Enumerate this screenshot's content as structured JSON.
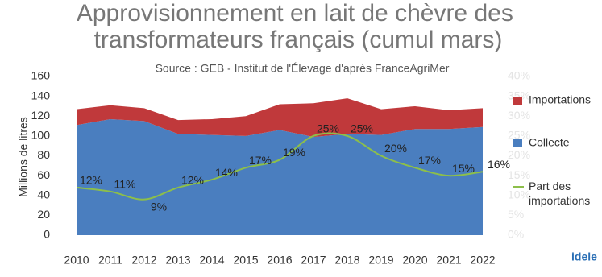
{
  "chart_data": {
    "type": "stacked-area-line",
    "title": "Approvisionnement en lait de chèvre des transformateurs français (cumul mars)",
    "subtitle": "Source : GEB - Institut de l'Élevage d'après FranceAgriMer",
    "y_label": "Millions de litres",
    "categories": [
      "2010",
      "2011",
      "2012",
      "2013",
      "2014",
      "2015",
      "2016",
      "2017",
      "2018",
      "2019",
      "2020",
      "2021",
      "2022"
    ],
    "series": [
      {
        "name": "Collecte",
        "color": "#4a7ebf",
        "values": [
          111,
          117,
          115,
          102,
          101,
          100,
          106,
          99,
          102,
          101,
          107,
          107,
          109
        ]
      },
      {
        "name": "Importations",
        "color": "#c0393b",
        "values": [
          16,
          14,
          13,
          14,
          16,
          20,
          26,
          34,
          36,
          26,
          23,
          19,
          19
        ]
      },
      {
        "name": "Part des importations",
        "color": "#8dbf4a",
        "axis": "y2",
        "values": [
          12,
          11,
          9,
          12,
          14,
          17,
          19,
          25,
          25,
          20,
          17,
          15,
          16
        ],
        "value_labels": [
          "12%",
          "11%",
          "9%",
          "12%",
          "14%",
          "17%",
          "19%",
          "25%",
          "25%",
          "20%",
          "17%",
          "15%",
          "16%"
        ]
      }
    ],
    "ylim": [
      0,
      160
    ],
    "yticks": [
      0,
      20,
      40,
      60,
      80,
      100,
      120,
      140,
      160
    ],
    "y2lim": [
      0,
      40
    ],
    "y2ticks": [
      {
        "value": 0,
        "label": "0%"
      },
      {
        "value": 5,
        "label": "5%"
      },
      {
        "value": 10,
        "label": "10%"
      },
      {
        "value": 15,
        "label": "15%"
      },
      {
        "value": 20,
        "label": "20%"
      },
      {
        "value": 25,
        "label": "25%"
      },
      {
        "value": 30,
        "label": "30%"
      },
      {
        "value": 35,
        "label": "35%"
      },
      {
        "value": 40,
        "label": "40%"
      }
    ],
    "logo": "idele"
  }
}
